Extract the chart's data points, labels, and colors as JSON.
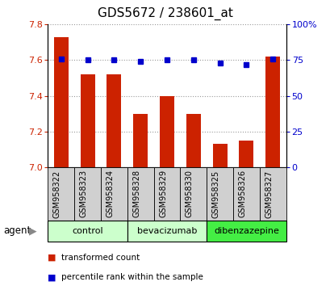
{
  "title": "GDS5672 / 238601_at",
  "samples": [
    "GSM958322",
    "GSM958323",
    "GSM958324",
    "GSM958328",
    "GSM958329",
    "GSM958330",
    "GSM958325",
    "GSM958326",
    "GSM958327"
  ],
  "bar_values": [
    7.73,
    7.52,
    7.52,
    7.3,
    7.4,
    7.3,
    7.13,
    7.15,
    7.62
  ],
  "percentile_values": [
    76,
    75,
    75,
    74,
    75,
    75,
    73,
    72,
    76
  ],
  "ymin": 7.0,
  "ymax": 7.8,
  "y_ticks": [
    7.0,
    7.2,
    7.4,
    7.6,
    7.8
  ],
  "y2min": 0,
  "y2max": 100,
  "y2_ticks": [
    0,
    25,
    50,
    75,
    100
  ],
  "y2_ticklabels": [
    "0",
    "25",
    "50",
    "75",
    "100%"
  ],
  "bar_color": "#cc2200",
  "dot_color": "#0000cc",
  "groups": [
    {
      "label": "control",
      "start": 0,
      "end": 3,
      "color": "#ccffcc"
    },
    {
      "label": "bevacizumab",
      "start": 3,
      "end": 6,
      "color": "#ccffcc"
    },
    {
      "label": "dibenzazepine",
      "start": 6,
      "end": 9,
      "color": "#44ee44"
    }
  ],
  "group_row_label": "agent",
  "legend_bar_label": "transformed count",
  "legend_dot_label": "percentile rank within the sample",
  "bar_color_red": "#cc2200",
  "dot_color_blue": "#0000cc",
  "label_gray_bg": "#d0d0d0",
  "title_fontsize": 11,
  "tick_fontsize": 8,
  "sample_fontsize": 7,
  "group_fontsize": 8,
  "legend_fontsize": 7.5
}
